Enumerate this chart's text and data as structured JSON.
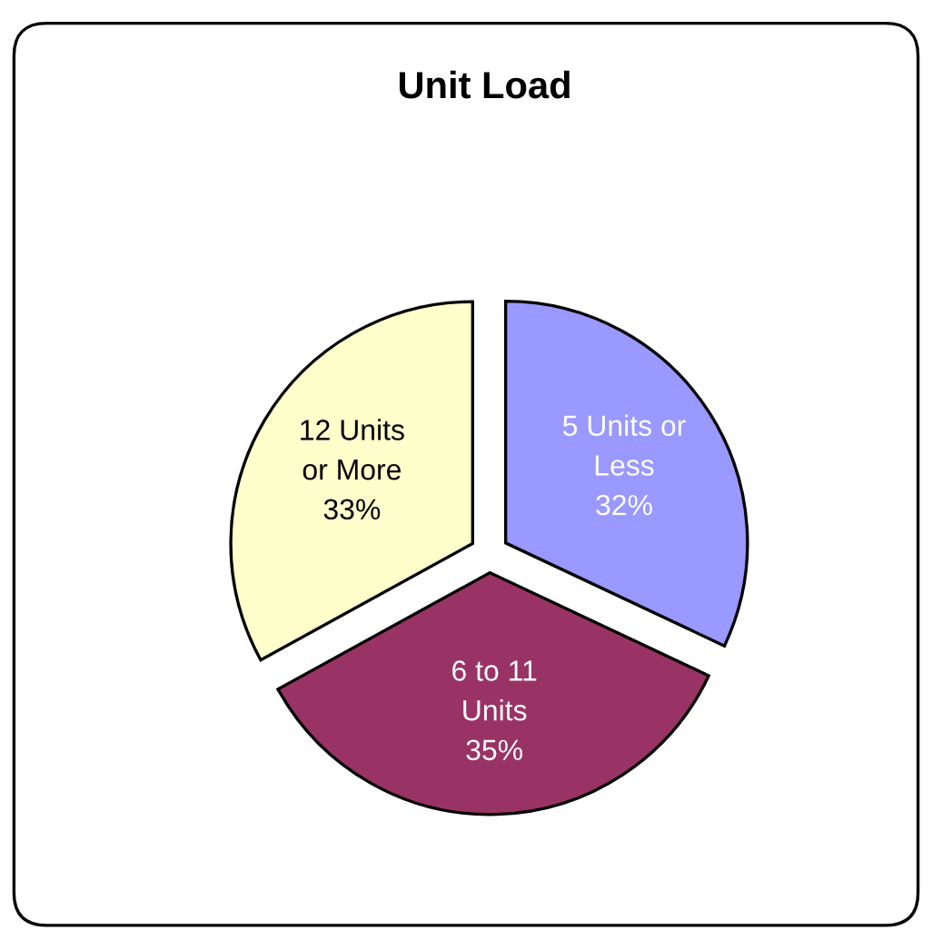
{
  "chart_data": {
    "type": "pie",
    "title": "Unit Load",
    "categories": [
      "5 Units or\nLess",
      "6 to 11\nUnits",
      "12 Units\nor More"
    ],
    "values": [
      32,
      35,
      33
    ],
    "colors": [
      "#9999ff",
      "#993366",
      "#ffffcc"
    ],
    "value_labels": [
      "32%",
      "35%",
      "33%"
    ],
    "legend": false
  }
}
